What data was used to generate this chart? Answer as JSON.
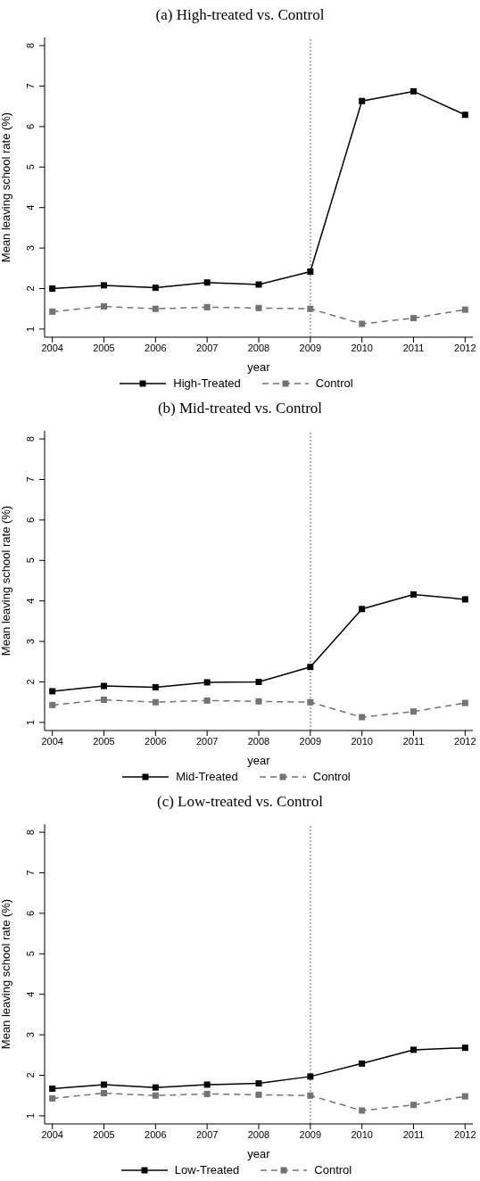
{
  "chart_data": [
    {
      "type": "line",
      "title": "(a) High-treated vs. Control",
      "xlabel": "year",
      "ylabel": "Mean leaving school rate (%)",
      "x": [
        2004,
        2005,
        2006,
        2007,
        2008,
        2009,
        2010,
        2011,
        2012
      ],
      "xlim": [
        2003.85,
        2012.15
      ],
      "xticks": [
        2004,
        2005,
        2006,
        2007,
        2008,
        2009,
        2010,
        2011,
        2012
      ],
      "ylim": [
        0.8,
        8.2
      ],
      "yticks": [
        1,
        2,
        3,
        4,
        5,
        6,
        7,
        8
      ],
      "grid": false,
      "legend": "bottom",
      "marker": "square",
      "series": [
        {
          "name": "High-Treated",
          "color": "#000000",
          "line_style": "solid",
          "values": [
            2.0,
            2.08,
            2.02,
            2.15,
            2.1,
            2.42,
            6.63,
            6.87,
            6.29
          ]
        },
        {
          "name": "Control",
          "color": "#737373",
          "line_style": "dashed",
          "values": [
            1.43,
            1.56,
            1.5,
            1.54,
            1.52,
            1.5,
            1.13,
            1.27,
            1.48
          ]
        }
      ],
      "ref_lines": [
        {
          "axis": "x",
          "value": 2009,
          "color": "#b0b0b0",
          "line_style": "dotted"
        }
      ]
    },
    {
      "type": "line",
      "title": "(b) Mid-treated vs. Control",
      "xlabel": "year",
      "ylabel": "Mean leaving school rate (%)",
      "x": [
        2004,
        2005,
        2006,
        2007,
        2008,
        2009,
        2010,
        2011,
        2012
      ],
      "xlim": [
        2003.85,
        2012.15
      ],
      "xticks": [
        2004,
        2005,
        2006,
        2007,
        2008,
        2009,
        2010,
        2011,
        2012
      ],
      "ylim": [
        0.8,
        8.2
      ],
      "yticks": [
        1,
        2,
        3,
        4,
        5,
        6,
        7,
        8
      ],
      "grid": false,
      "legend": "bottom",
      "marker": "square",
      "series": [
        {
          "name": "Mid-Treated",
          "color": "#000000",
          "line_style": "solid",
          "values": [
            1.77,
            1.9,
            1.87,
            1.99,
            2.0,
            2.37,
            3.8,
            4.16,
            4.04
          ]
        },
        {
          "name": "Control",
          "color": "#737373",
          "line_style": "dashed",
          "values": [
            1.43,
            1.56,
            1.5,
            1.54,
            1.52,
            1.5,
            1.13,
            1.27,
            1.48
          ]
        }
      ],
      "ref_lines": [
        {
          "axis": "x",
          "value": 2009,
          "color": "#b0b0b0",
          "line_style": "dotted"
        }
      ]
    },
    {
      "type": "line",
      "title": "(c) Low-treated vs. Control",
      "xlabel": "year",
      "ylabel": "Mean leaving school rate (%)",
      "x": [
        2004,
        2005,
        2006,
        2007,
        2008,
        2009,
        2010,
        2011,
        2012
      ],
      "xlim": [
        2003.85,
        2012.15
      ],
      "xticks": [
        2004,
        2005,
        2006,
        2007,
        2008,
        2009,
        2010,
        2011,
        2012
      ],
      "ylim": [
        0.8,
        8.2
      ],
      "yticks": [
        1,
        2,
        3,
        4,
        5,
        6,
        7,
        8
      ],
      "grid": false,
      "legend": "bottom",
      "marker": "square",
      "series": [
        {
          "name": "Low-Treated",
          "color": "#000000",
          "line_style": "solid",
          "values": [
            1.67,
            1.77,
            1.7,
            1.77,
            1.8,
            1.97,
            2.29,
            2.63,
            2.68
          ]
        },
        {
          "name": "Control",
          "color": "#737373",
          "line_style": "dashed",
          "values": [
            1.43,
            1.56,
            1.5,
            1.54,
            1.52,
            1.5,
            1.13,
            1.27,
            1.48
          ]
        }
      ],
      "ref_lines": [
        {
          "axis": "x",
          "value": 2009,
          "color": "#b0b0b0",
          "line_style": "dotted"
        }
      ]
    }
  ]
}
